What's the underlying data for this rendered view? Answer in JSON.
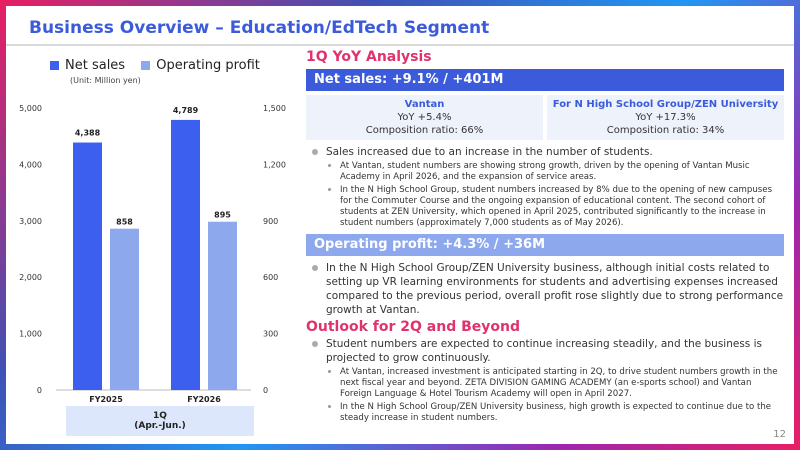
{
  "title": "Business Overview – Education/EdTech Segment",
  "legend": {
    "net_sales": "Net sales",
    "op_profit": "Operating profit",
    "unit": "(Unit: Million yen)"
  },
  "period": {
    "line1": "1Q",
    "line2": "(Apr.-Jun.)"
  },
  "colors": {
    "net_sales": "#3d5ff0",
    "op_profit": "#8ea8ee",
    "accent_pink": "#e0336c",
    "accent_blue": "#3b5bdb"
  },
  "chart_data": {
    "type": "bar",
    "categories": [
      "FY2025",
      "FY2026"
    ],
    "series": [
      {
        "name": "Net sales",
        "axis": "left",
        "values": [
          4388,
          4789
        ],
        "labels": [
          "4,388",
          "4,789"
        ]
      },
      {
        "name": "Operating profit",
        "axis": "right",
        "values": [
          858,
          895
        ],
        "labels": [
          "858",
          "895"
        ]
      }
    ],
    "y_left": {
      "min": 0,
      "max": 5000,
      "ticks": [
        "0",
        "1,000",
        "2,000",
        "3,000",
        "4,000",
        "5,000"
      ]
    },
    "y_right": {
      "min": 0,
      "max": 1500,
      "ticks": [
        "0",
        "300",
        "600",
        "900",
        "1,200",
        "1,500"
      ]
    },
    "ylim": [
      0,
      5000
    ]
  },
  "yoy": {
    "heading": "1Q YoY Analysis",
    "net_sales_header": "Net sales: +9.1% / +401M",
    "seg_left": {
      "name": "Vantan",
      "yoy": "YoY +5.4%",
      "ratio": "Composition ratio: 66%"
    },
    "seg_right": {
      "name": "For N High School Group/ZEN University",
      "yoy": "YoY +17.3%",
      "ratio": "Composition ratio: 34%"
    },
    "ns_bullet": "Sales increased due to an increase in the number of students.",
    "ns_sub1": "At Vantan, student numbers are showing strong growth, driven by the opening of Vantan Music Academy in April 2026, and the expansion of service areas.",
    "ns_sub2": "In the N High School Group, student numbers increased by 8% due to the opening of new campuses for the Commuter Course and the ongoing expansion of educational content. The second cohort of students at ZEN University, which opened in April 2025, contributed significantly to the increase in student numbers (approximately 7,000 students as of May 2026).",
    "op_header": "Operating profit: +4.3% / +36M",
    "op_bullet": "In the N High School Group/ZEN University business, although initial costs related to setting up VR learning environments for students and advertising expenses increased compared to the previous period, overall profit rose slightly due to strong performance growth at Vantan."
  },
  "outlook": {
    "heading": "Outlook for 2Q and Beyond",
    "bullet": "Student numbers are expected to continue increasing steadily, and the business is projected to grow continuously.",
    "sub1": "At Vantan, increased investment is anticipated starting in 2Q, to drive student numbers growth in the next fiscal year and beyond. ZETA DIVISION GAMING ACADEMY (an e-sports school) and Vantan Foreign Language & Hotel Tourism Academy will open in April 2027.",
    "sub2": "In the N High School Group/ZEN University business, high growth is expected to continue due to the steady increase in student numbers."
  },
  "page_number": "12"
}
